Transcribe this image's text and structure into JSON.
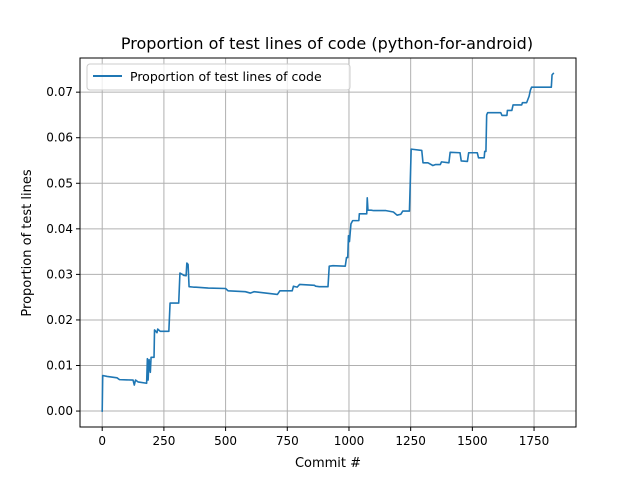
{
  "chart_data": {
    "type": "line",
    "title": "Proportion of test lines of code (python-for-android)",
    "xlabel": "Commit #",
    "ylabel": "Proportion of test lines",
    "xlim": [
      -90,
      1920
    ],
    "ylim": [
      -0.0035,
      0.0775
    ],
    "xticks": [
      0,
      250,
      500,
      750,
      1000,
      1250,
      1500,
      1750
    ],
    "yticks": [
      0.0,
      0.01,
      0.02,
      0.03,
      0.04,
      0.05,
      0.06,
      0.07
    ],
    "ytick_labels": [
      "0.00",
      "0.01",
      "0.02",
      "0.03",
      "0.04",
      "0.05",
      "0.06",
      "0.07"
    ],
    "grid": true,
    "legend_position": "top-left",
    "series": [
      {
        "name": "Proportion of test lines of code",
        "color": "#1f77b4",
        "points": [
          [
            0,
            0.0
          ],
          [
            2,
            0.0078
          ],
          [
            20,
            0.0076
          ],
          [
            60,
            0.0073
          ],
          [
            70,
            0.0069
          ],
          [
            125,
            0.0068
          ],
          [
            130,
            0.0057
          ],
          [
            135,
            0.0068
          ],
          [
            145,
            0.0064
          ],
          [
            180,
            0.0061
          ],
          [
            183,
            0.0115
          ],
          [
            186,
            0.0068
          ],
          [
            190,
            0.0113
          ],
          [
            195,
            0.0085
          ],
          [
            198,
            0.0118
          ],
          [
            210,
            0.0118
          ],
          [
            212,
            0.0178
          ],
          [
            222,
            0.0172
          ],
          [
            225,
            0.018
          ],
          [
            235,
            0.0175
          ],
          [
            270,
            0.0175
          ],
          [
            275,
            0.0237
          ],
          [
            310,
            0.0237
          ],
          [
            315,
            0.0303
          ],
          [
            325,
            0.03
          ],
          [
            330,
            0.0298
          ],
          [
            340,
            0.0297
          ],
          [
            343,
            0.0325
          ],
          [
            348,
            0.0322
          ],
          [
            352,
            0.0273
          ],
          [
            370,
            0.0272
          ],
          [
            380,
            0.0272
          ],
          [
            430,
            0.027
          ],
          [
            500,
            0.0269
          ],
          [
            510,
            0.0264
          ],
          [
            580,
            0.0262
          ],
          [
            600,
            0.0259
          ],
          [
            615,
            0.0262
          ],
          [
            680,
            0.0258
          ],
          [
            710,
            0.0256
          ],
          [
            720,
            0.0264
          ],
          [
            770,
            0.0264
          ],
          [
            775,
            0.0274
          ],
          [
            790,
            0.0272
          ],
          [
            800,
            0.0278
          ],
          [
            860,
            0.0276
          ],
          [
            865,
            0.0274
          ],
          [
            880,
            0.0273
          ],
          [
            915,
            0.0273
          ],
          [
            920,
            0.0318
          ],
          [
            935,
            0.0319
          ],
          [
            985,
            0.0318
          ],
          [
            990,
            0.0337
          ],
          [
            995,
            0.0337
          ],
          [
            998,
            0.0385
          ],
          [
            1002,
            0.0372
          ],
          [
            1008,
            0.0411
          ],
          [
            1015,
            0.0418
          ],
          [
            1040,
            0.0418
          ],
          [
            1042,
            0.0433
          ],
          [
            1072,
            0.0433
          ],
          [
            1074,
            0.0468
          ],
          [
            1077,
            0.0441
          ],
          [
            1090,
            0.0441
          ],
          [
            1100,
            0.044
          ],
          [
            1150,
            0.044
          ],
          [
            1180,
            0.0437
          ],
          [
            1195,
            0.043
          ],
          [
            1210,
            0.0432
          ],
          [
            1218,
            0.0439
          ],
          [
            1245,
            0.0439
          ],
          [
            1248,
            0.0495
          ],
          [
            1252,
            0.0575
          ],
          [
            1295,
            0.0572
          ],
          [
            1300,
            0.0545
          ],
          [
            1320,
            0.0545
          ],
          [
            1340,
            0.0539
          ],
          [
            1350,
            0.0541
          ],
          [
            1370,
            0.0541
          ],
          [
            1375,
            0.0547
          ],
          [
            1405,
            0.0545
          ],
          [
            1410,
            0.0568
          ],
          [
            1450,
            0.0567
          ],
          [
            1455,
            0.0549
          ],
          [
            1480,
            0.0548
          ],
          [
            1485,
            0.0567
          ],
          [
            1520,
            0.0567
          ],
          [
            1525,
            0.0556
          ],
          [
            1548,
            0.0556
          ],
          [
            1550,
            0.057
          ],
          [
            1555,
            0.057
          ],
          [
            1558,
            0.065
          ],
          [
            1562,
            0.0655
          ],
          [
            1615,
            0.0655
          ],
          [
            1620,
            0.0649
          ],
          [
            1640,
            0.0649
          ],
          [
            1642,
            0.066
          ],
          [
            1660,
            0.066
          ],
          [
            1665,
            0.0672
          ],
          [
            1700,
            0.0672
          ],
          [
            1703,
            0.0677
          ],
          [
            1720,
            0.0677
          ],
          [
            1730,
            0.0691
          ],
          [
            1735,
            0.0704
          ],
          [
            1740,
            0.0711
          ],
          [
            1820,
            0.0711
          ],
          [
            1823,
            0.0738
          ],
          [
            1828,
            0.0741
          ]
        ]
      }
    ]
  }
}
